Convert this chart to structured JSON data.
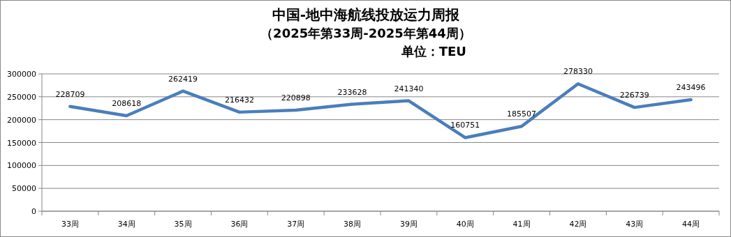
{
  "chart_data": {
    "type": "line",
    "title": "中国-地中海航线投放运力周报",
    "subtitle": "（2025年第33周-2025年第44周）",
    "annotations": [
      "单位：TEU"
    ],
    "categories": [
      "33周",
      "34周",
      "35周",
      "36周",
      "37周",
      "38周",
      "39周",
      "40周",
      "41周",
      "42周",
      "43周",
      "44周"
    ],
    "series": [
      {
        "color": "#4a7ebb",
        "values": [
          228709,
          208618,
          262419,
          216432,
          220898,
          233628,
          241340,
          160751,
          185507,
          278330,
          226739,
          243496
        ]
      }
    ],
    "ylim": [
      0,
      300000
    ],
    "yticks": [
      0,
      50000,
      100000,
      150000,
      200000,
      250000,
      300000
    ],
    "grid": "y",
    "marker": "none",
    "line_style": "solid",
    "data_labels": true
  }
}
